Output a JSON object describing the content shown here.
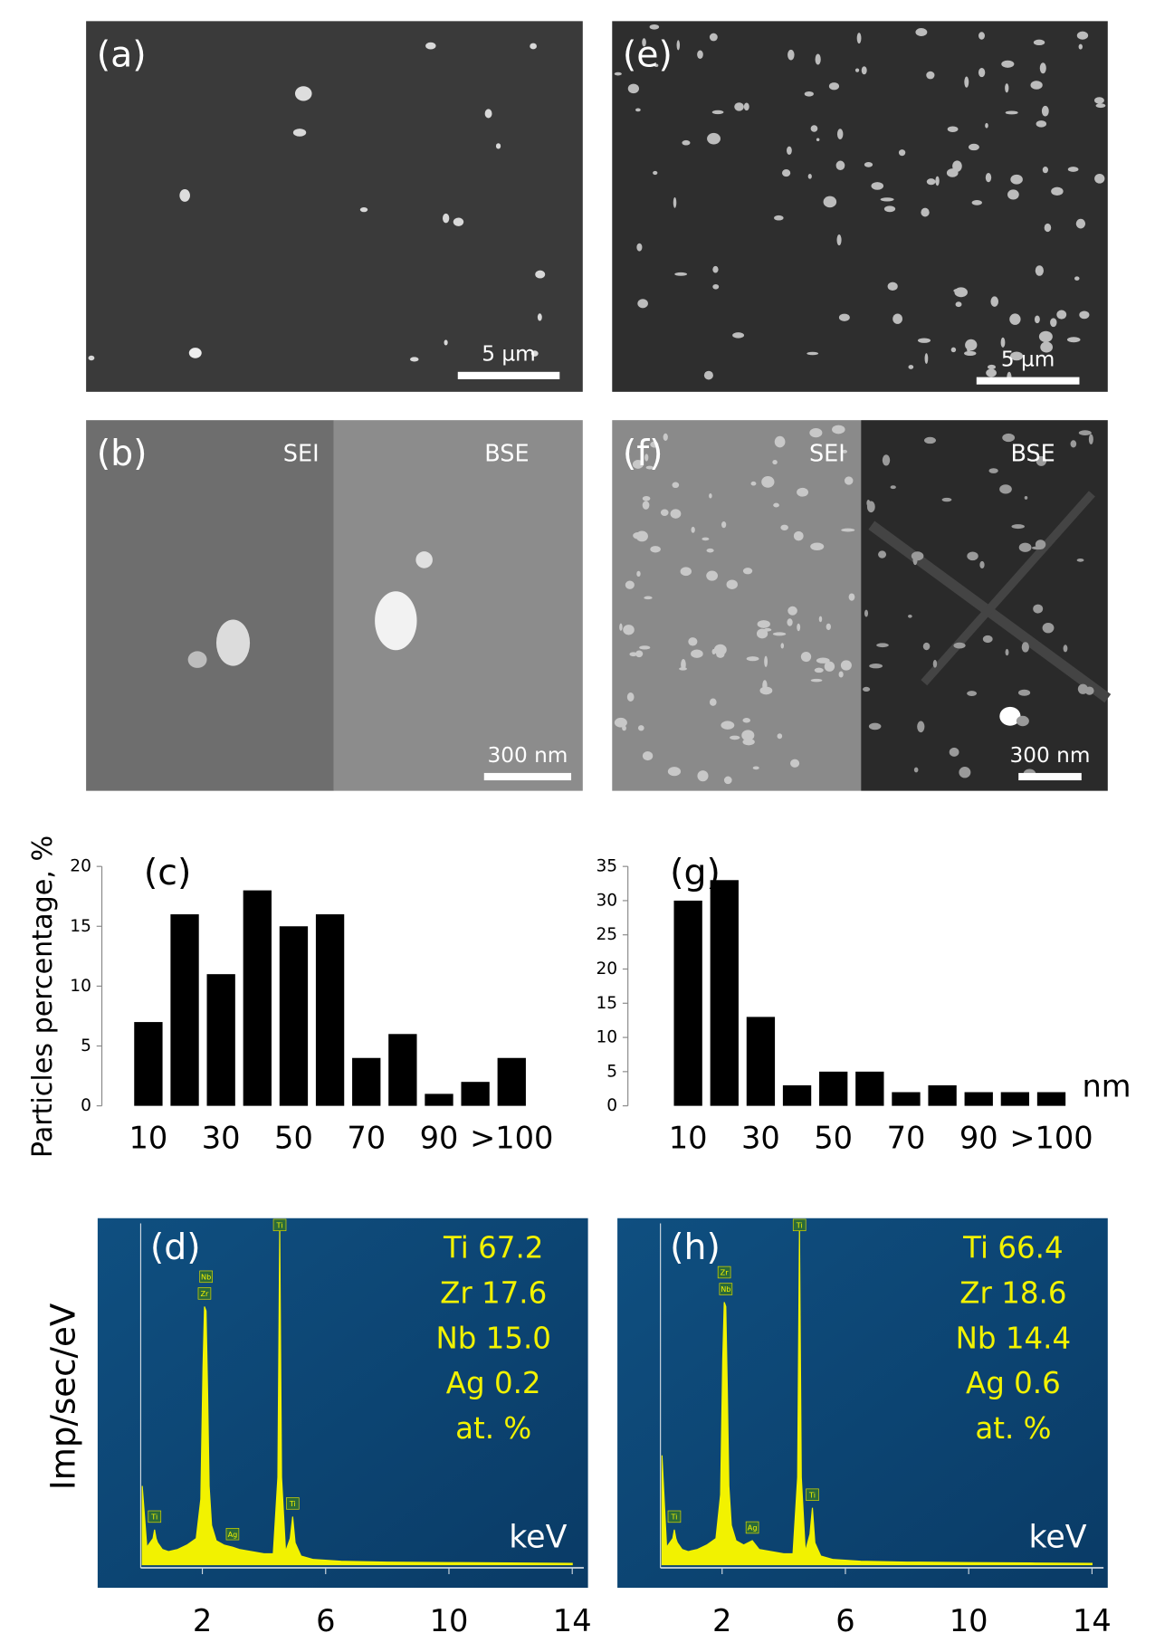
{
  "figure": {
    "panels": [
      {
        "label": "(a)",
        "scale_bar": "5 µm"
      },
      {
        "label": "(b)",
        "scale_bar": "300 nm",
        "halves": [
          "SEI",
          "BSE"
        ]
      },
      {
        "label": "(e)",
        "scale_bar": "5 µm"
      },
      {
        "label": "(f)",
        "scale_bar": "300 nm",
        "halves": [
          "SEI",
          "BSE"
        ]
      }
    ]
  },
  "chart_data": [
    {
      "type": "bar",
      "label": "(c)",
      "y_label": "Particles percentage, %",
      "categories": [
        "10",
        null,
        "30",
        null,
        "50",
        null,
        "70",
        null,
        "90",
        null,
        ">100"
      ],
      "values": [
        7,
        16,
        11,
        18,
        15,
        16,
        4,
        6,
        1,
        2,
        4
      ],
      "color": "#000000",
      "ylim": [
        0,
        20
      ],
      "yticks": [
        0,
        5,
        10,
        15,
        20
      ]
    },
    {
      "type": "bar",
      "label": "(g)",
      "x_label": "nm",
      "categories": [
        "10",
        null,
        "30",
        null,
        "50",
        null,
        "70",
        null,
        "90",
        null,
        ">100"
      ],
      "values": [
        30,
        33,
        13,
        3,
        5,
        5,
        2,
        3,
        2,
        2,
        2
      ],
      "color": "#000000",
      "ylim": [
        0,
        35
      ],
      "yticks": [
        0,
        5,
        10,
        15,
        20,
        25,
        30,
        35
      ]
    },
    {
      "type": "spectrum",
      "label": "(d)",
      "y_label": "Imp/sec/eV",
      "x_label": "keV",
      "color": "#f2f200",
      "composition": [
        "Ti 67.2",
        "Zr 17.6",
        "Nb 15.0",
        "Ag 0.2",
        "at. %"
      ],
      "x": [
        0.05,
        0.2,
        0.3,
        0.4,
        0.45,
        0.5,
        0.55,
        0.7,
        0.9,
        1.2,
        1.5,
        1.8,
        1.95,
        2.02,
        2.07,
        2.12,
        2.17,
        2.22,
        2.3,
        2.45,
        2.7,
        2.98,
        3.2,
        3.6,
        4.0,
        4.3,
        4.45,
        4.51,
        4.57,
        4.7,
        4.85,
        4.93,
        5.01,
        5.2,
        5.6,
        6.5,
        8,
        10,
        12,
        14
      ],
      "values": [
        1.8,
        0.4,
        0.5,
        0.6,
        0.8,
        0.6,
        0.5,
        0.35,
        0.3,
        0.35,
        0.45,
        0.6,
        1.5,
        4.5,
        5.9,
        5.8,
        4.0,
        1.8,
        0.9,
        0.55,
        0.45,
        0.4,
        0.35,
        0.3,
        0.25,
        0.25,
        2.0,
        7.7,
        2.0,
        0.3,
        0.6,
        1.1,
        0.5,
        0.2,
        0.12,
        0.08,
        0.06,
        0.05,
        0.04,
        0.03
      ],
      "peak_labels": [
        {
          "label": "Ti",
          "x": 0.45
        },
        {
          "label": "Nb",
          "x": 2.12
        },
        {
          "label": "Zr",
          "x": 2.07
        },
        {
          "label": "Ag",
          "x": 2.98
        },
        {
          "label": "Ti",
          "x": 4.51
        },
        {
          "label": "Ti",
          "x": 4.93
        }
      ],
      "xlim": [
        0,
        14
      ],
      "xticks": [
        2,
        6,
        10,
        14
      ],
      "ylim": [
        0,
        7.8
      ]
    },
    {
      "type": "spectrum",
      "label": "(h)",
      "x_label": "keV",
      "color": "#f2f200",
      "composition": [
        "Ti 66.4",
        "Zr 18.6",
        "Nb 14.4",
        "Ag 0.6",
        "at. %"
      ],
      "x": [
        0.05,
        0.2,
        0.3,
        0.4,
        0.45,
        0.5,
        0.55,
        0.7,
        0.9,
        1.2,
        1.5,
        1.8,
        1.95,
        2.02,
        2.07,
        2.12,
        2.17,
        2.22,
        2.3,
        2.45,
        2.7,
        2.98,
        3.2,
        3.6,
        4.0,
        4.3,
        4.45,
        4.51,
        4.57,
        4.7,
        4.85,
        4.93,
        5.01,
        5.2,
        5.6,
        6.5,
        8,
        10,
        12,
        14
      ],
      "values": [
        2.5,
        0.4,
        0.5,
        0.6,
        0.8,
        0.6,
        0.5,
        0.35,
        0.3,
        0.35,
        0.45,
        0.6,
        1.6,
        4.7,
        6.0,
        5.9,
        4.0,
        1.8,
        0.9,
        0.55,
        0.45,
        0.55,
        0.35,
        0.3,
        0.25,
        0.25,
        2.0,
        7.7,
        2.0,
        0.3,
        0.7,
        1.3,
        0.5,
        0.2,
        0.12,
        0.08,
        0.06,
        0.05,
        0.04,
        0.03
      ],
      "peak_labels": [
        {
          "label": "Ti",
          "x": 0.45
        },
        {
          "label": "Zr",
          "x": 2.07
        },
        {
          "label": "Nb",
          "x": 2.12
        },
        {
          "label": "Ag",
          "x": 2.98
        },
        {
          "label": "Ti",
          "x": 4.51
        },
        {
          "label": "Ti",
          "x": 4.93
        }
      ],
      "xlim": [
        0,
        14
      ],
      "xticks": [
        2,
        6,
        10,
        14
      ],
      "ylim": [
        0,
        7.8
      ]
    }
  ]
}
